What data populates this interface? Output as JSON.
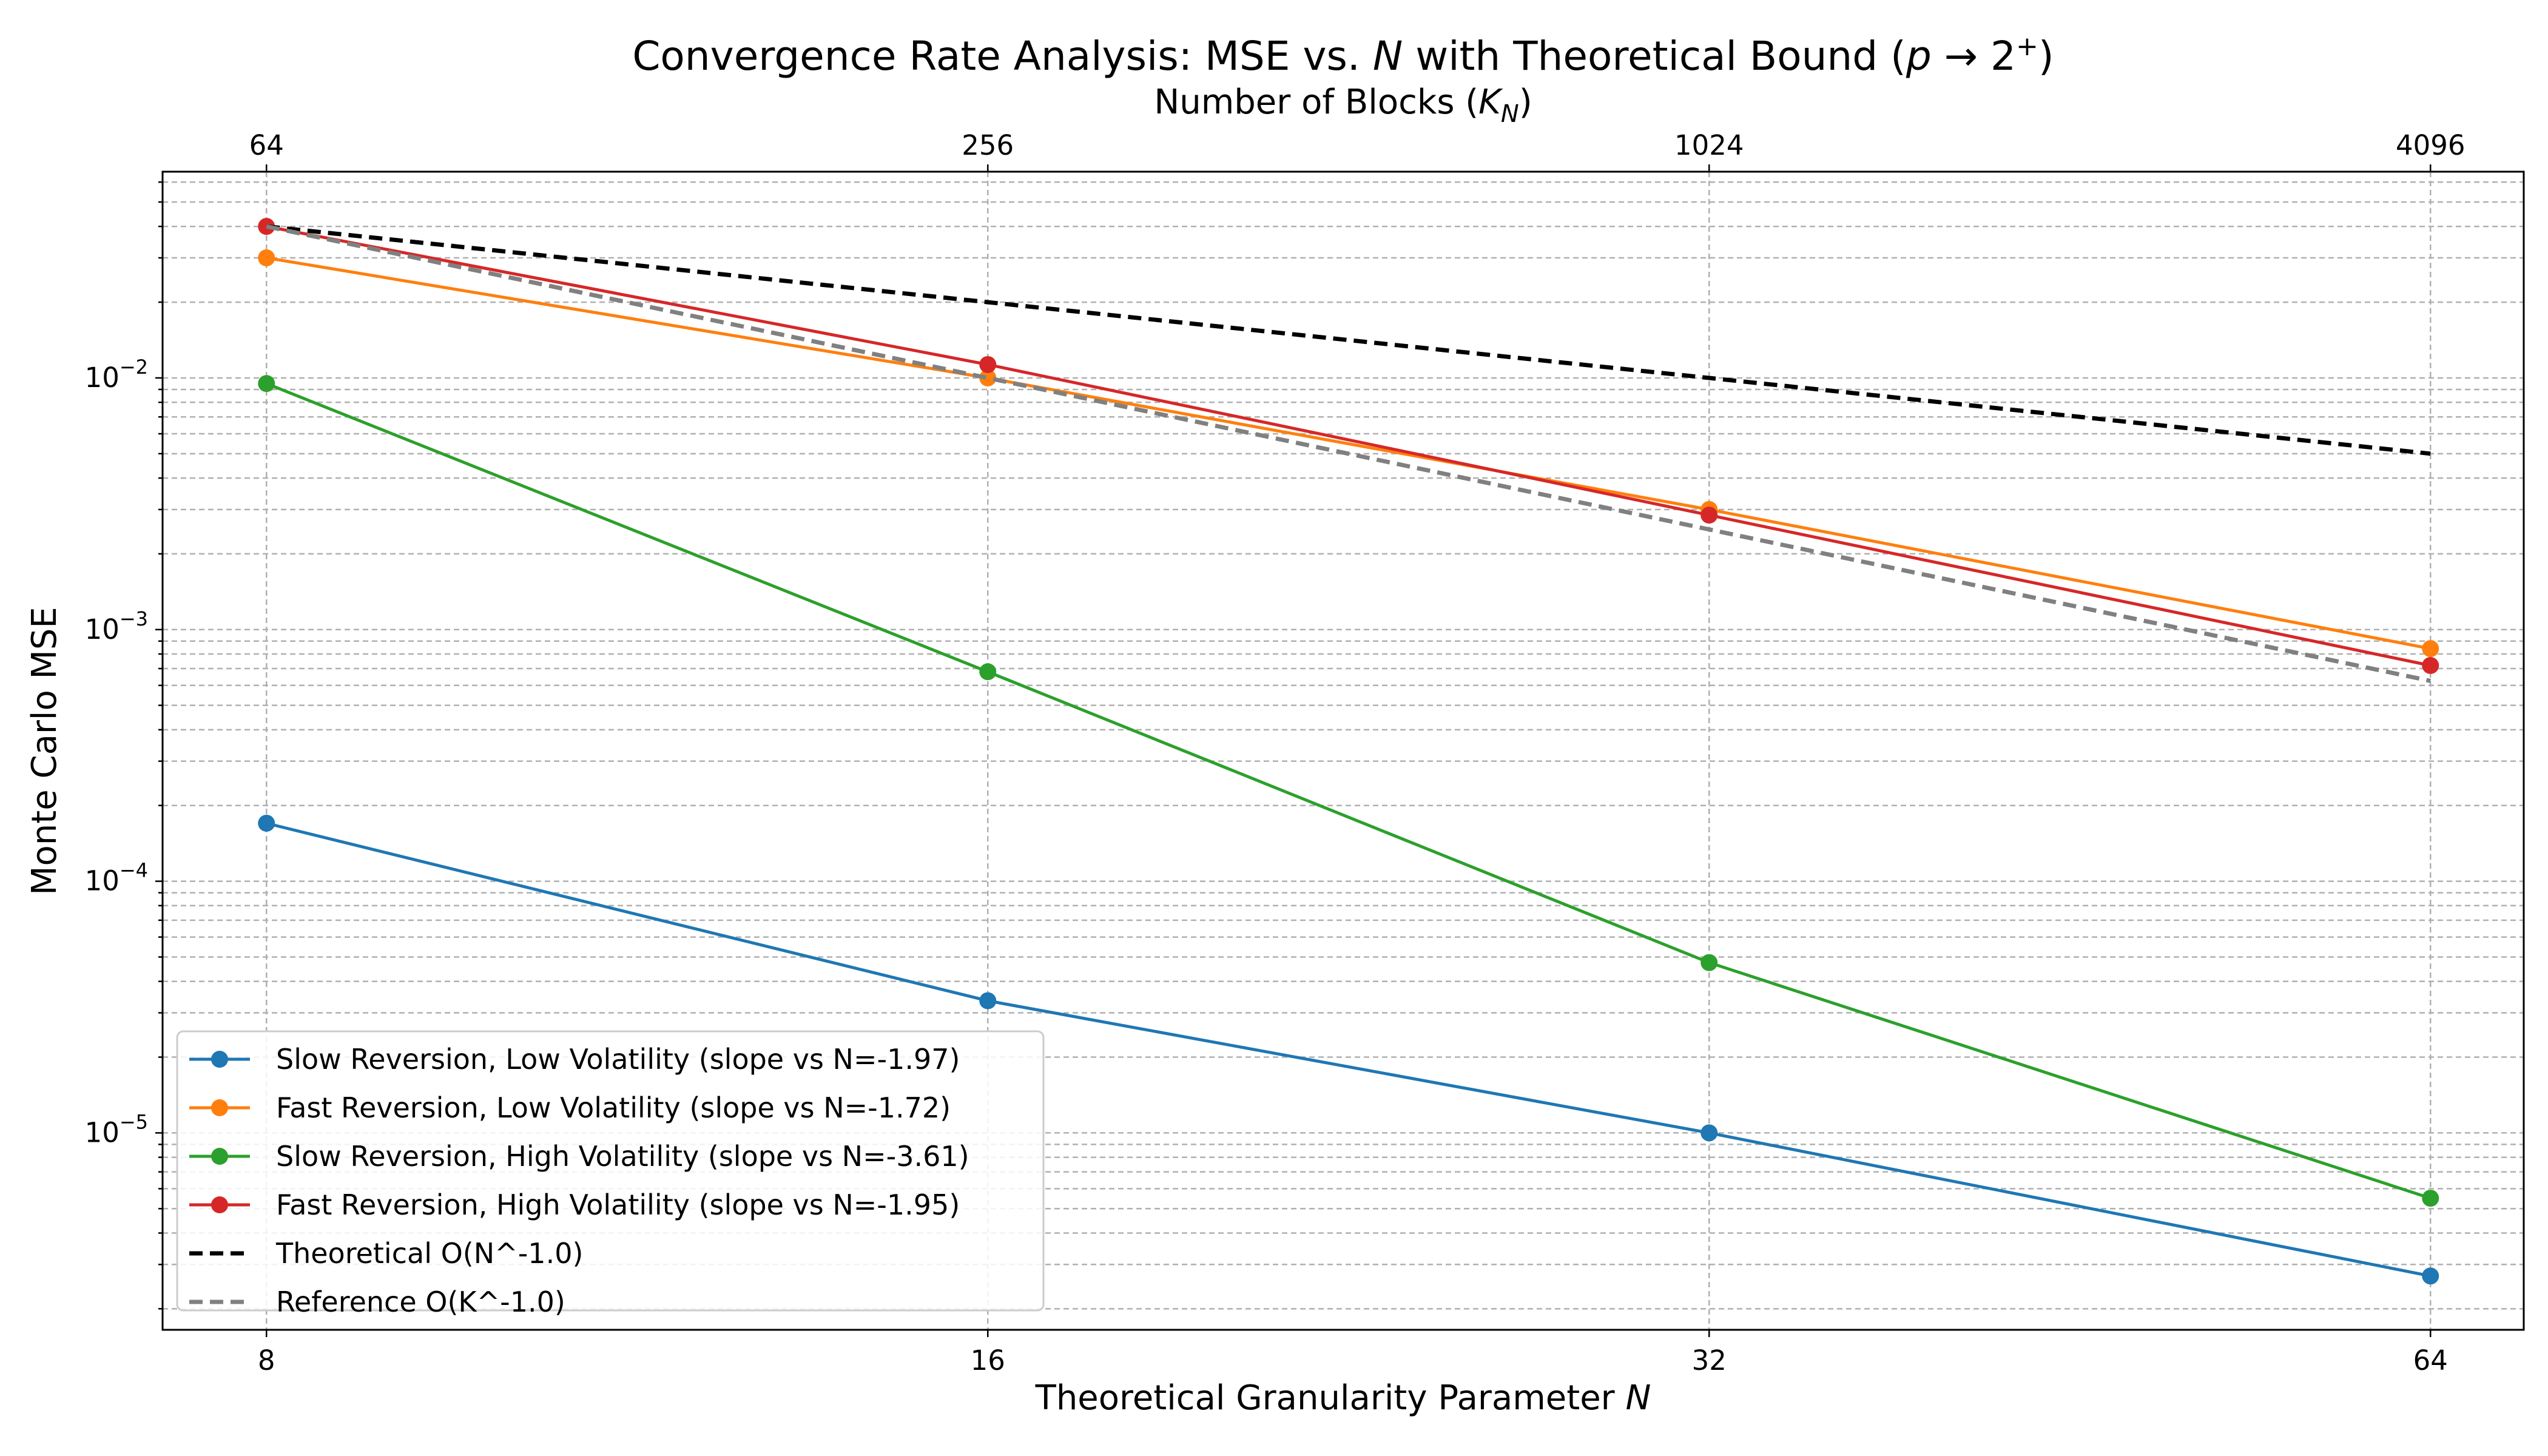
{
  "chart_data": {
    "type": "line",
    "title": "Convergence Rate Analysis: MSE vs. N with Theoretical Bound (p → 2⁺)",
    "xlabel": "Theoretical Granularity Parameter N",
    "ylabel": "Monte Carlo MSE",
    "top_xlabel": "Number of Blocks (K_N)",
    "x_scale": "log2",
    "y_scale": "log10",
    "x": [
      8,
      16,
      32,
      64
    ],
    "x_tick_labels": [
      "8",
      "16",
      "32",
      "64"
    ],
    "top_x_tick_labels": [
      "64",
      "256",
      "1024",
      "4096"
    ],
    "xlim": [
      7.24,
      70.0
    ],
    "ylim": [
      1.65e-06,
      0.066
    ],
    "y_major_ticks": [
      1e-05,
      0.0001,
      0.001,
      0.01
    ],
    "grid": true,
    "legend_position": "lower-left",
    "series": [
      {
        "name": "Slow Reversion, Low Volatility (slope vs N=-1.97)",
        "values": [
          0.00017,
          3.35e-05,
          1e-05,
          2.7e-06
        ],
        "color": "#1f77b4",
        "style": "solid",
        "markers": true
      },
      {
        "name": "Fast Reversion, Low Volatility (slope vs N=-1.72)",
        "values": [
          0.03,
          0.01,
          0.003,
          0.00084
        ],
        "color": "#ff7f0e",
        "style": "solid",
        "markers": true
      },
      {
        "name": "Slow Reversion, High Volatility (slope vs N=-3.61)",
        "values": [
          0.0095,
          0.00068,
          4.75e-05,
          5.5e-06
        ],
        "color": "#2ca02c",
        "style": "solid",
        "markers": true
      },
      {
        "name": "Fast Reversion, High Volatility (slope vs N=-1.95)",
        "values": [
          0.04,
          0.0113,
          0.00285,
          0.00072
        ],
        "color": "#d62728",
        "style": "solid",
        "markers": true
      },
      {
        "name": "Theoretical O(N^-1.0)",
        "values": [
          0.04,
          0.02,
          0.01,
          0.005
        ],
        "color": "#000000",
        "style": "dashed",
        "markers": false
      },
      {
        "name": "Reference O(K^-1.0)",
        "values": [
          0.04,
          0.01,
          0.0025,
          0.000625
        ],
        "color": "#808080",
        "style": "dashed",
        "markers": false
      }
    ]
  }
}
